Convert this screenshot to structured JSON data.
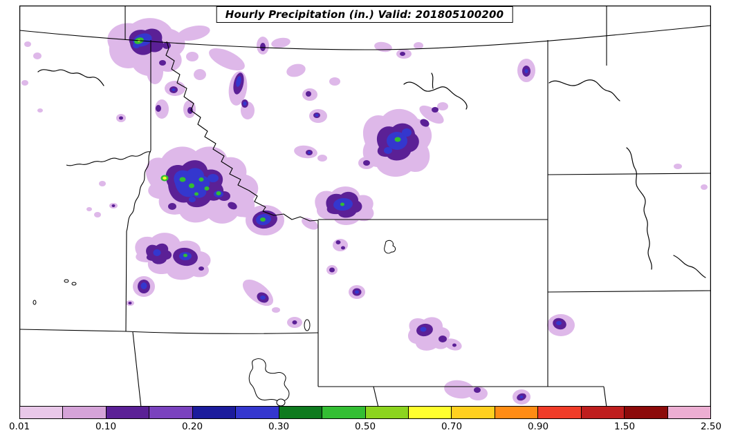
{
  "title": "Hourly Precipitation (in.) Valid: 201805100200",
  "colorbar": {
    "tick_labels": [
      "0.01",
      "0.10",
      "0.20",
      "0.30",
      "0.50",
      "0.70",
      "0.90",
      "1.50",
      "2.50"
    ],
    "segments": [
      {
        "range": "0.01-0.05",
        "color": "#E9C8E9"
      },
      {
        "range": "0.05-0.10",
        "color": "#D5A3D8"
      },
      {
        "range": "0.10-0.15",
        "color": "#5B2096"
      },
      {
        "range": "0.15-0.20",
        "color": "#7A42BE"
      },
      {
        "range": "0.20-0.25",
        "color": "#1C1C9C"
      },
      {
        "range": "0.25-0.30",
        "color": "#3437CE"
      },
      {
        "range": "0.30-0.40",
        "color": "#0E7A1E"
      },
      {
        "range": "0.40-0.50",
        "color": "#33BE33"
      },
      {
        "range": "0.50-0.60",
        "color": "#8CD41F"
      },
      {
        "range": "0.60-0.70",
        "color": "#FFFF2E"
      },
      {
        "range": "0.70-0.80",
        "color": "#FFD01F"
      },
      {
        "range": "0.80-0.90",
        "color": "#FF8C14"
      },
      {
        "range": "0.90-1.20",
        "color": "#F03C28"
      },
      {
        "range": "1.20-1.50",
        "color": "#BE1E1E"
      },
      {
        "range": "1.50-2.00",
        "color": "#8C0A0A"
      },
      {
        "range": "2.00-2.50",
        "color": "#ECAED2"
      }
    ]
  },
  "colors": {
    "lavender": "#DEB8E9",
    "purple": "#5B2096",
    "blue": "#3437CE",
    "green": "#33BE33",
    "yellow": "#FFFF2E",
    "map_line": "#000000",
    "water_fill": "#FFFFFF",
    "background": "#FFFFFF"
  }
}
